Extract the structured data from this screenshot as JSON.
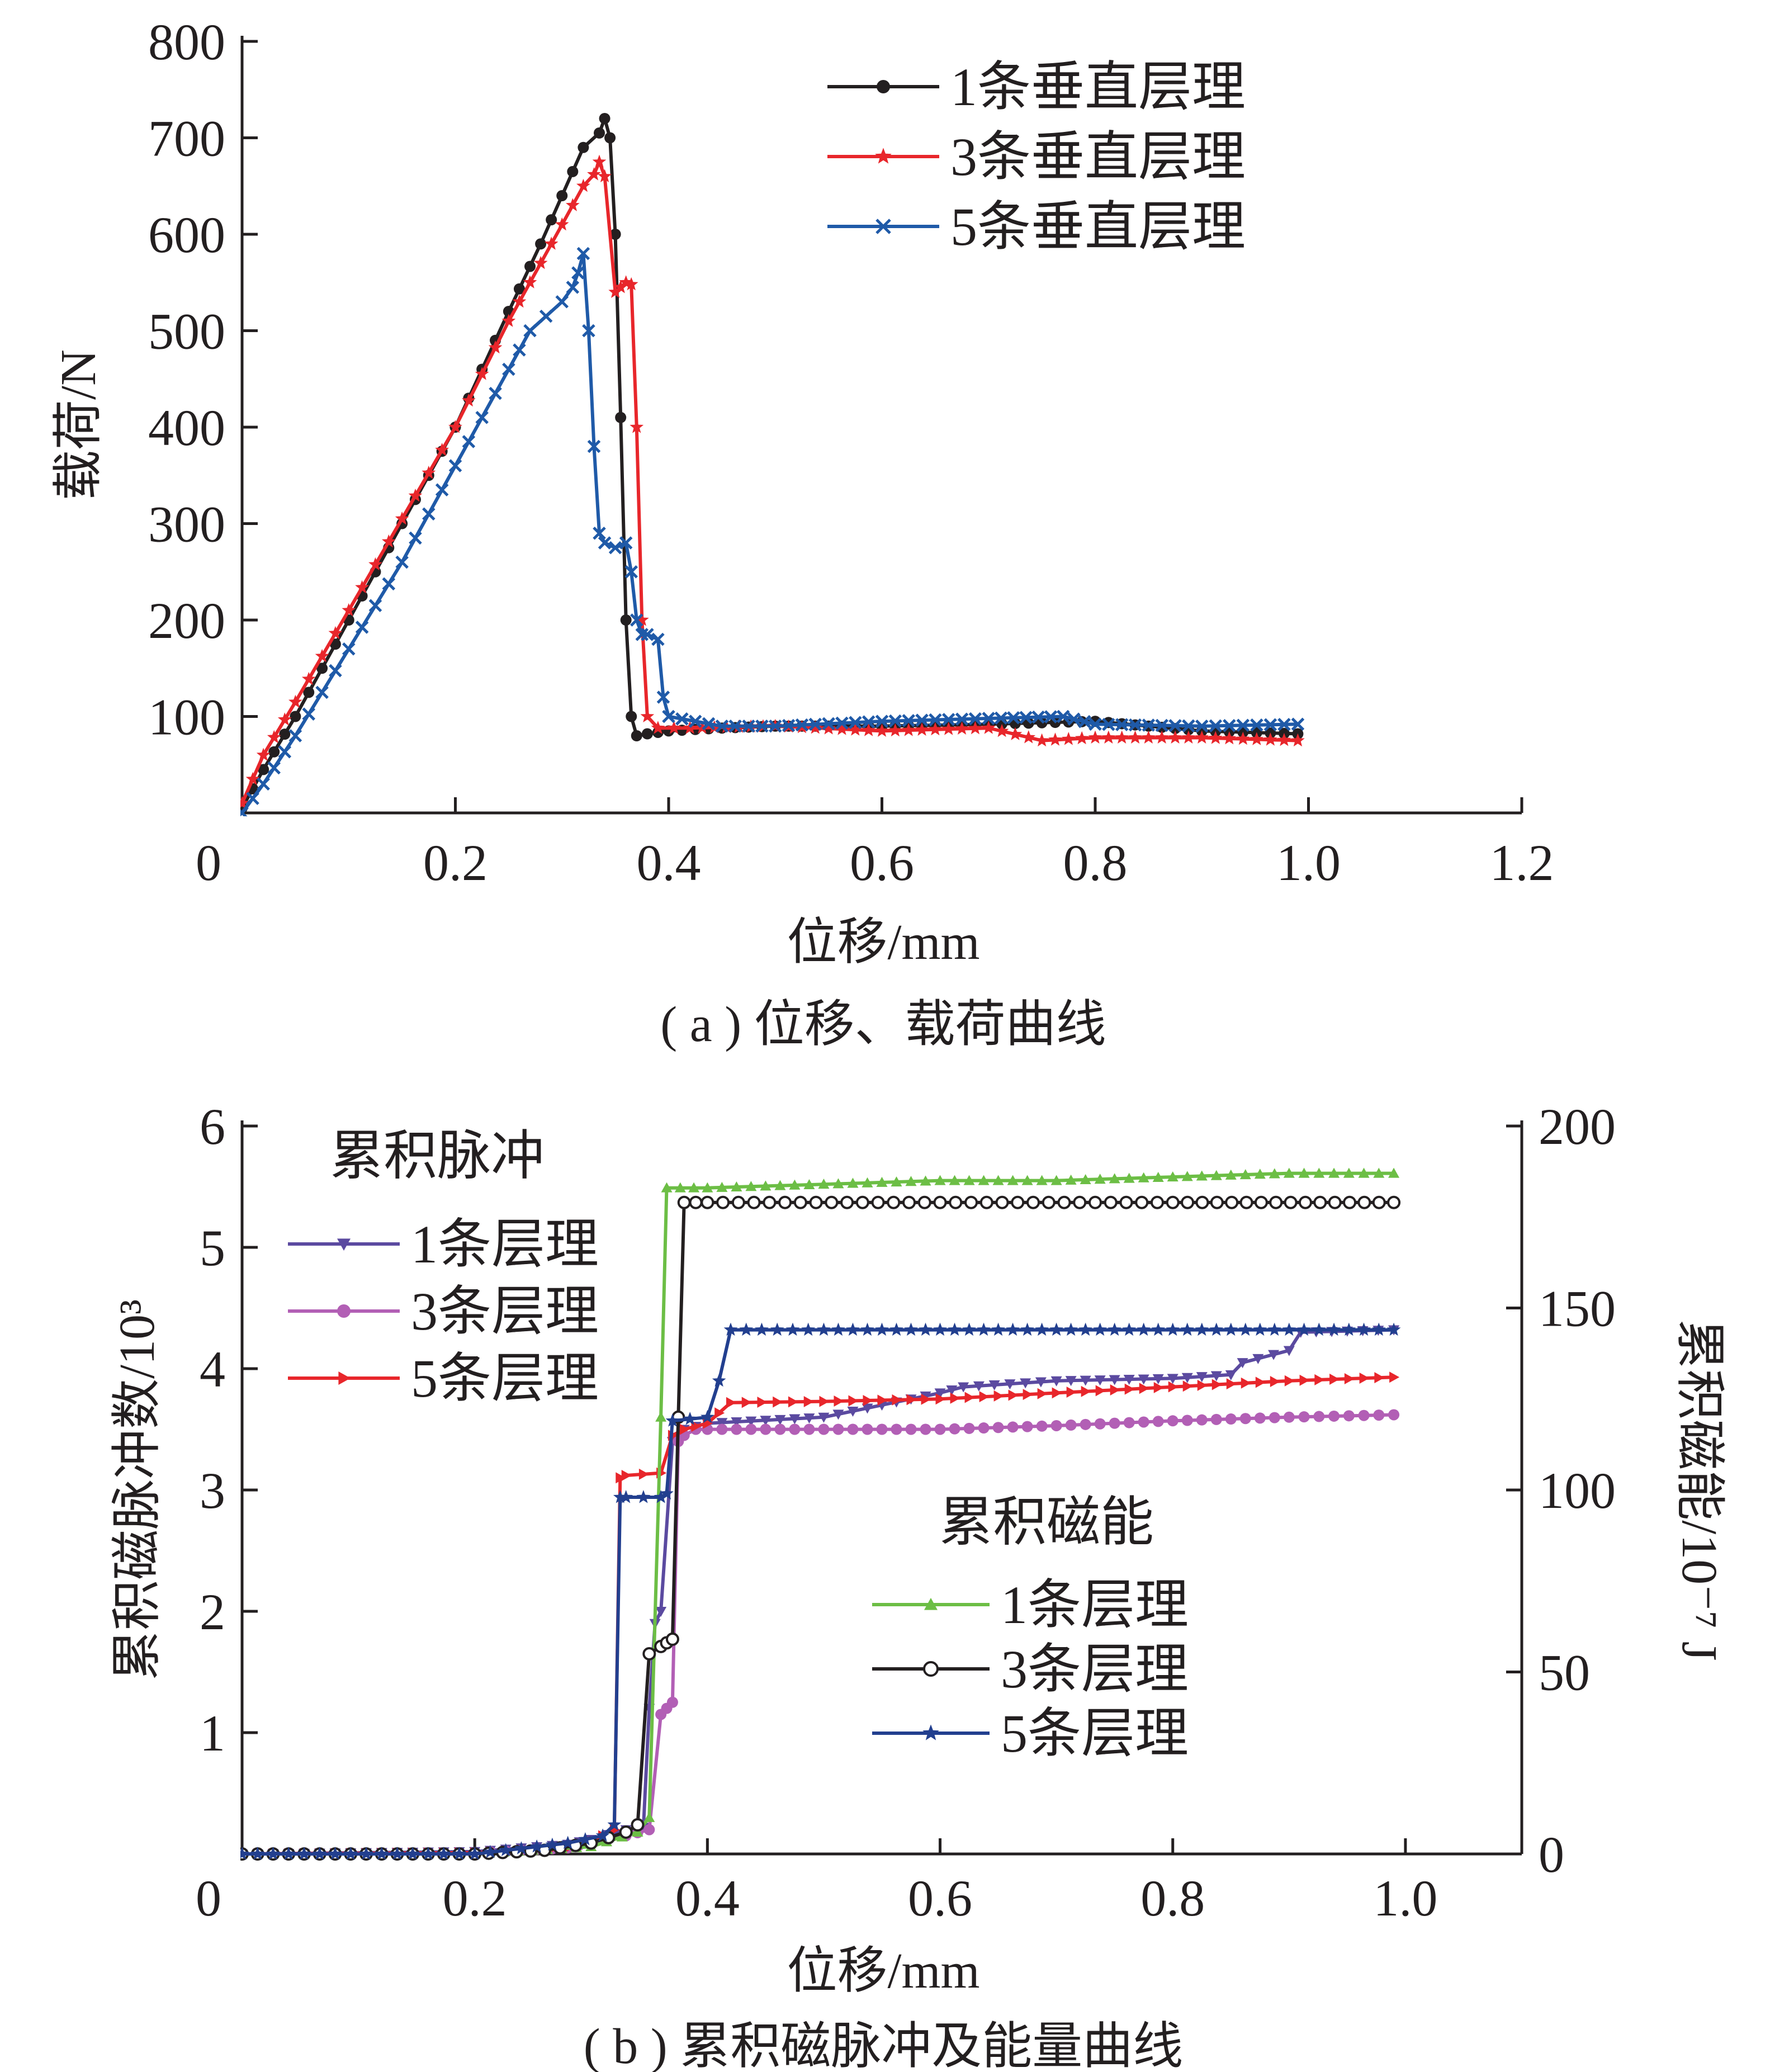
{
  "chart_data": [
    {
      "type": "line",
      "caption": "( a ) 位移、载荷曲线",
      "xlabel": "位移/mm",
      "ylabel": "载荷/N",
      "xlim": [
        0,
        1.2
      ],
      "ylim": [
        0,
        800
      ],
      "xticks": [
        0,
        0.2,
        0.4,
        0.6,
        0.8,
        1.0,
        1.2
      ],
      "xtick_labels": [
        "0",
        "0.2",
        "0.4",
        "0.6",
        "0.8",
        "1.0",
        "1.2"
      ],
      "yticks": [
        100,
        200,
        300,
        400,
        500,
        600,
        700,
        800
      ],
      "ytick_labels": [
        "100",
        "200",
        "300",
        "400",
        "500",
        "600",
        "700",
        "800"
      ],
      "legend_position": "top-right",
      "series": [
        {
          "name": "1条垂直层理",
          "color": "#231f20",
          "marker": "circle",
          "x": [
            0.0,
            0.02,
            0.05,
            0.1,
            0.15,
            0.2,
            0.25,
            0.28,
            0.3,
            0.32,
            0.335,
            0.34,
            0.345,
            0.35,
            0.355,
            0.36,
            0.365,
            0.37,
            0.38,
            0.4,
            0.45,
            0.5,
            0.6,
            0.7,
            0.8,
            0.9,
            0.99
          ],
          "y": [
            5,
            45,
            100,
            200,
            300,
            400,
            520,
            590,
            640,
            690,
            705,
            720,
            700,
            600,
            410,
            200,
            100,
            80,
            82,
            85,
            88,
            90,
            90,
            92,
            95,
            85,
            82
          ]
        },
        {
          "name": "3条垂直层理",
          "color": "#e8262b",
          "marker": "star",
          "x": [
            0.0,
            0.02,
            0.05,
            0.1,
            0.15,
            0.2,
            0.25,
            0.28,
            0.3,
            0.32,
            0.33,
            0.335,
            0.34,
            0.35,
            0.355,
            0.36,
            0.365,
            0.37,
            0.375,
            0.38,
            0.39,
            0.42,
            0.5,
            0.6,
            0.7,
            0.75,
            0.8,
            0.9,
            0.99
          ],
          "y": [
            10,
            60,
            115,
            210,
            305,
            400,
            510,
            570,
            610,
            650,
            662,
            675,
            660,
            540,
            545,
            550,
            548,
            400,
            200,
            100,
            88,
            88,
            90,
            85,
            88,
            75,
            78,
            78,
            75
          ]
        },
        {
          "name": "5条垂直层理",
          "color": "#1f5aa8",
          "marker": "x",
          "x": [
            0.0,
            0.02,
            0.05,
            0.1,
            0.15,
            0.2,
            0.25,
            0.27,
            0.3,
            0.31,
            0.315,
            0.32,
            0.325,
            0.33,
            0.335,
            0.34,
            0.35,
            0.36,
            0.365,
            0.37,
            0.375,
            0.38,
            0.39,
            0.395,
            0.4,
            0.45,
            0.5,
            0.6,
            0.7,
            0.77,
            0.8,
            0.9,
            0.99
          ],
          "y": [
            0,
            30,
            80,
            170,
            260,
            360,
            460,
            500,
            530,
            545,
            560,
            580,
            500,
            380,
            290,
            280,
            275,
            280,
            250,
            200,
            185,
            185,
            180,
            120,
            100,
            90,
            90,
            95,
            98,
            100,
            92,
            90,
            92
          ]
        }
      ]
    },
    {
      "type": "line",
      "caption": "( b ) 累积磁脉冲及能量曲线",
      "xlabel": "位移/mm",
      "ylabel_left": "累积磁脉冲数/10³",
      "ylabel_right": "累积磁能/10⁻⁷ J",
      "xlim": [
        0,
        1.1
      ],
      "ylim_left": [
        0,
        6
      ],
      "ylim_right": [
        0,
        200
      ],
      "xticks": [
        0,
        0.2,
        0.4,
        0.6,
        0.8,
        1.0
      ],
      "xtick_labels": [
        "0",
        "0.2",
        "0.4",
        "0.6",
        "0.8",
        "1.0"
      ],
      "yticks_left": [
        1,
        2,
        3,
        4,
        5,
        6
      ],
      "ytick_labels_left": [
        "1",
        "2",
        "3",
        "4",
        "5",
        "6"
      ],
      "yticks_right": [
        0,
        50,
        100,
        150,
        200
      ],
      "ytick_labels_right": [
        "0",
        "50",
        "100",
        "150",
        "200"
      ],
      "legend_pulse_title": "累积脉冲",
      "legend_energy_title": "累积磁能",
      "legend_pulse_position": "top-left",
      "legend_energy_position": "center-right",
      "pulse_series": [
        {
          "name": "1条层理",
          "color": "#5b4aa0",
          "marker": "triangle-down",
          "axis": "left",
          "x": [
            0.0,
            0.2,
            0.28,
            0.3,
            0.33,
            0.345,
            0.35,
            0.355,
            0.36,
            0.37,
            0.38,
            0.4,
            0.5,
            0.55,
            0.6,
            0.62,
            0.7,
            0.8,
            0.85,
            0.86,
            0.9,
            0.91,
            0.99
          ],
          "y": [
            0.0,
            0.02,
            0.08,
            0.12,
            0.2,
            0.22,
            1.2,
            1.9,
            2.0,
            3.4,
            3.5,
            3.55,
            3.6,
            3.7,
            3.8,
            3.85,
            3.9,
            3.92,
            3.95,
            4.05,
            4.15,
            4.3,
            4.32
          ]
        },
        {
          "name": "3条层理",
          "color": "#b25fb5",
          "marker": "circle",
          "axis": "left",
          "x": [
            0.0,
            0.2,
            0.28,
            0.3,
            0.33,
            0.35,
            0.36,
            0.365,
            0.37,
            0.375,
            0.38,
            0.39,
            0.4,
            0.5,
            0.6,
            0.7,
            0.8,
            0.9,
            0.99
          ],
          "y": [
            0.0,
            0.01,
            0.05,
            0.1,
            0.15,
            0.2,
            1.15,
            1.2,
            1.25,
            3.4,
            3.45,
            3.5,
            3.5,
            3.5,
            3.5,
            3.53,
            3.57,
            3.6,
            3.62
          ]
        },
        {
          "name": "5条层理",
          "color": "#e8262b",
          "marker": "triangle-right",
          "axis": "left",
          "x": [
            0.0,
            0.2,
            0.28,
            0.3,
            0.31,
            0.32,
            0.325,
            0.33,
            0.36,
            0.37,
            0.38,
            0.4,
            0.42,
            0.5,
            0.6,
            0.7,
            0.8,
            0.9,
            0.99
          ],
          "y": [
            0.0,
            0.01,
            0.05,
            0.1,
            0.15,
            0.2,
            3.1,
            3.12,
            3.14,
            3.45,
            3.5,
            3.55,
            3.72,
            3.73,
            3.75,
            3.8,
            3.85,
            3.9,
            3.93
          ]
        }
      ],
      "energy_series": [
        {
          "name": "1条层理",
          "color": "#6cbe45",
          "marker": "triangle-up",
          "axis": "right",
          "x": [
            0.0,
            0.2,
            0.3,
            0.34,
            0.35,
            0.36,
            0.365,
            0.4,
            0.5,
            0.6,
            0.7,
            0.8,
            0.9,
            0.99
          ],
          "y": [
            0,
            0,
            2,
            6,
            10,
            120,
            183,
            183,
            184,
            185,
            185,
            186,
            187,
            187
          ]
        },
        {
          "name": "3条层理",
          "color": "#231f20",
          "marker": "open-circle",
          "axis": "right",
          "x": [
            0.0,
            0.2,
            0.26,
            0.3,
            0.33,
            0.34,
            0.35,
            0.36,
            0.365,
            0.37,
            0.375,
            0.38,
            0.4,
            0.6,
            0.8,
            0.99
          ],
          "y": [
            0,
            0,
            1,
            3,
            6,
            8,
            55,
            57,
            58,
            59,
            120,
            179,
            179,
            179,
            179,
            179
          ]
        },
        {
          "name": "5条层理",
          "color": "#223f8f",
          "marker": "star",
          "axis": "right",
          "x": [
            0.0,
            0.2,
            0.28,
            0.31,
            0.32,
            0.325,
            0.33,
            0.36,
            0.365,
            0.37,
            0.4,
            0.41,
            0.42,
            0.5,
            0.6,
            0.7,
            0.8,
            0.9,
            0.99
          ],
          "y": [
            0,
            0,
            3,
            5,
            8,
            98,
            98,
            98,
            99,
            119,
            120,
            130,
            144,
            144,
            144,
            144,
            144,
            144,
            144
          ]
        }
      ]
    }
  ]
}
